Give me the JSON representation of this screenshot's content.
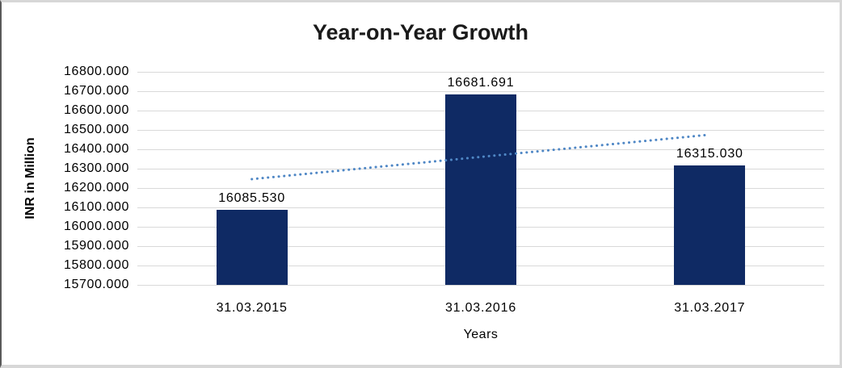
{
  "chart_data": {
    "type": "bar",
    "title": "Year-on-Year Growth",
    "xlabel": "Years",
    "ylabel": "INR in Million",
    "categories": [
      "31.03.2015",
      "31.03.2016",
      "31.03.2017"
    ],
    "values": [
      16085.53,
      16681.691,
      16315.03
    ],
    "data_labels": [
      "16085.530",
      "16681.691",
      "16315.030"
    ],
    "y_ticks": [
      "16800.000",
      "16700.000",
      "16600.000",
      "16500.000",
      "16400.000",
      "16300.000",
      "16200.000",
      "16100.000",
      "16000.000",
      "15900.000",
      "15800.000",
      "15700.000"
    ],
    "ylim": [
      15700,
      16800
    ],
    "y_step": 100,
    "grid": true,
    "legend": "none",
    "colors": {
      "bar": "#0f2a64",
      "gridline": "#d9d9d9",
      "trendline": "#4f87c5",
      "text": "#000000",
      "title_text": "#1a1a1a",
      "frame_border": "#d7d7d7",
      "frame_left_edge": "#5a5a5a"
    },
    "trendline": {
      "type": "linear",
      "style": "dotted",
      "color": "#4f87c5",
      "values": [
        16246.0,
        16360.75,
        16475.5
      ]
    }
  }
}
